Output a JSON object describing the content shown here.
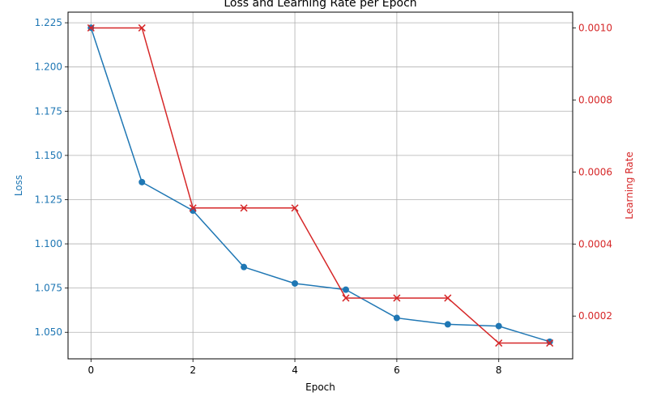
{
  "chart_data": {
    "type": "line",
    "title": "Loss and Learning Rate per Epoch",
    "xlabel": "Epoch",
    "ylabel_left": "Loss",
    "ylabel_right": "Learning Rate",
    "x": [
      0,
      1,
      2,
      3,
      4,
      5,
      6,
      7,
      8,
      9
    ],
    "xlim": [
      -0.45,
      9.45
    ],
    "xticks": [
      0,
      2,
      4,
      6,
      8
    ],
    "xtick_labels": [
      "0",
      "2",
      "4",
      "6",
      "8"
    ],
    "ylim_left": [
      1.035,
      1.231
    ],
    "yticks_left": [
      1.05,
      1.075,
      1.1,
      1.125,
      1.15,
      1.175,
      1.2,
      1.225
    ],
    "ytick_labels_left": [
      "1.050",
      "1.075",
      "1.100",
      "1.125",
      "1.150",
      "1.175",
      "1.200",
      "1.225"
    ],
    "ylim_right": [
      8.125e-05,
      0.00104375
    ],
    "yticks_right": [
      0.0002,
      0.0004,
      0.0006,
      0.0008,
      0.001
    ],
    "ytick_labels_right": [
      "0.0002",
      "0.0004",
      "0.0006",
      "0.0008",
      "0.0010"
    ],
    "grid": true,
    "series": [
      {
        "name": "Loss",
        "axis": "left",
        "marker": "circle",
        "color": "#1f77b4",
        "values": [
          1.2222,
          1.1349,
          1.1188,
          1.0869,
          1.0776,
          1.0741,
          1.0581,
          1.0545,
          1.0535,
          1.0447
        ]
      },
      {
        "name": "Learning Rate",
        "axis": "right",
        "marker": "x",
        "color": "#d62728",
        "values": [
          0.001,
          0.001,
          0.0005,
          0.0005,
          0.0005,
          0.00025,
          0.00025,
          0.00025,
          0.000125,
          0.000125
        ]
      }
    ]
  }
}
